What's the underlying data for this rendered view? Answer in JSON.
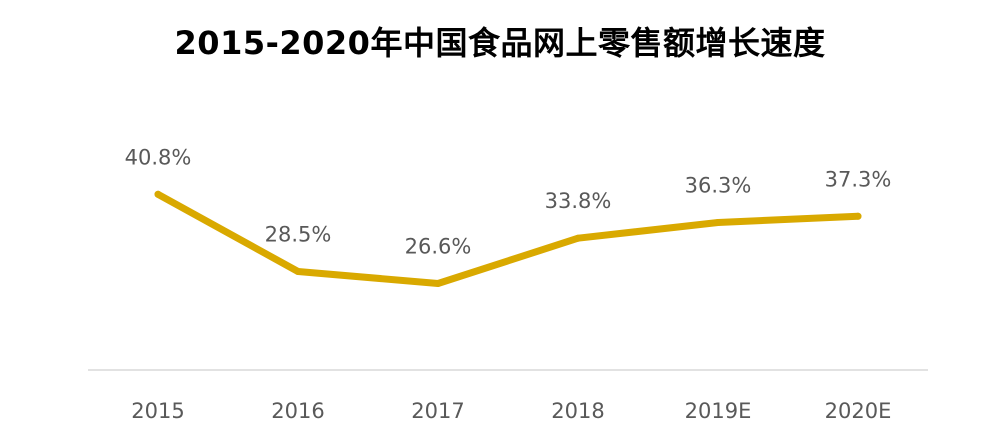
{
  "chart_data": {
    "type": "line",
    "title": "2015-2020年中国食品网上零售额增长速度",
    "categories": [
      "2015",
      "2016",
      "2017",
      "2018",
      "2019E",
      "2020E"
    ],
    "series": [
      {
        "values": [
          40.8,
          28.5,
          26.6,
          33.8,
          36.3,
          37.3
        ],
        "labels": [
          "40.8%",
          "28.5%",
          "26.6%",
          "33.8%",
          "36.3%",
          "37.3%"
        ],
        "color": "#D9A900"
      }
    ],
    "unit": "%",
    "grid": false,
    "legend": "none",
    "axis_color": "#D9D9D9"
  }
}
